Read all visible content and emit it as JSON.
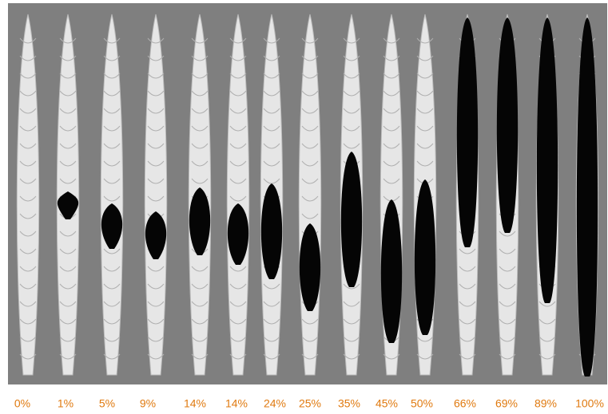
{
  "labels": [
    "0%",
    "1%",
    "5%",
    "9%",
    "14%",
    "14%",
    "24%",
    "25%",
    "35%",
    "45%",
    "50%",
    "66%",
    "69%",
    "89%",
    "100%"
  ]
}
